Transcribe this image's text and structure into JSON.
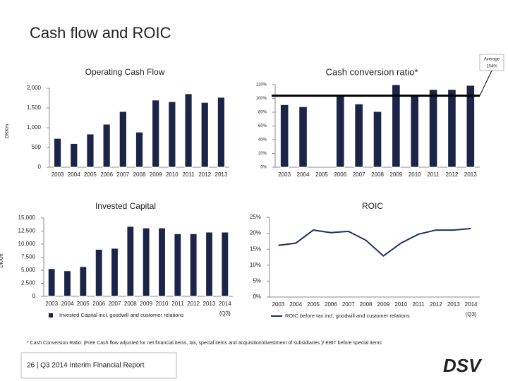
{
  "title": "Cash flow and ROIC",
  "footnote": "* Cash Conversion Ratio: (Free Cash flow adjusted for net financial items, tax, special items and acquisition/divestment of subsidiaries )/ EBIT before special items",
  "footer": "26 | Q3 2014 Interim Financial Report",
  "logo": "DSV",
  "chart_data": [
    {
      "type": "bar",
      "title": "Operating Cash Flow",
      "y_label": "DKKm",
      "categories": [
        "2003",
        "2004",
        "2005",
        "2006",
        "2007",
        "2008",
        "2009",
        "2010",
        "2011",
        "2012",
        "2013"
      ],
      "values": [
        730,
        600,
        840,
        1090,
        1410,
        890,
        1700,
        1660,
        1860,
        1640,
        1770
      ],
      "color": "#1c2448",
      "ylim": [
        0,
        2000
      ],
      "yticks": [
        0,
        500,
        {
          "value": 1000,
          "label": "1,000"
        },
        {
          "value": 1500,
          "label": "1,500"
        },
        {
          "value": 2000,
          "label": "2,000"
        }
      ]
    },
    {
      "type": "bar",
      "title": "Cash conversion ratio*",
      "categories": [
        "2003",
        "2004",
        "2005",
        "2006",
        "2007",
        "2008",
        "2009",
        "2010",
        "2011",
        "2012",
        "2013"
      ],
      "values": [
        91,
        88,
        null,
        104,
        92,
        81,
        120,
        104,
        113,
        113,
        119
      ],
      "color": "#1c2448",
      "reference_line": {
        "value": 104,
        "label": "104%"
      },
      "reference_note": "Average",
      "ylim": [
        0,
        120
      ],
      "yticks": [
        {
          "value": 0,
          "label": "0%"
        },
        {
          "value": 20,
          "label": "20%"
        },
        {
          "value": 40,
          "label": "40%"
        },
        {
          "value": 60,
          "label": "60%"
        },
        {
          "value": 80,
          "label": "80%"
        },
        {
          "value": 100,
          "label": "100%"
        },
        {
          "value": 120,
          "label": "120%"
        }
      ]
    },
    {
      "type": "bar",
      "title": "Invested Capital",
      "y_label": "DKKm",
      "categories": [
        "2003",
        "2004",
        "2005",
        "2006",
        "2007",
        "2008",
        "2009",
        "2010",
        "2011",
        "2012",
        "2013",
        "2014"
      ],
      "x_note": "(Q3)",
      "series": [
        {
          "name": "Invested Capital incl. goodwill and customer relations",
          "color": "#1c2448",
          "values": [
            5300,
            4900,
            5700,
            9000,
            9200,
            13400,
            13100,
            13100,
            12000,
            12000,
            12300,
            12300
          ]
        }
      ],
      "ylim": [
        0,
        15000
      ],
      "yticks": [
        0,
        {
          "value": 2500,
          "label": "2,500"
        },
        {
          "value": 5000,
          "label": "5,000"
        },
        {
          "value": 7500,
          "label": "7,500"
        },
        {
          "value": 10000,
          "label": "10,000"
        },
        {
          "value": 12500,
          "label": "12,500"
        },
        {
          "value": 15000,
          "label": "15,000"
        }
      ]
    },
    {
      "type": "line",
      "title": "ROIC",
      "categories": [
        "2003",
        "2004",
        "2005",
        "2006",
        "2007",
        "2008",
        "2009",
        "2010",
        "2011",
        "2012",
        "2013",
        "2014"
      ],
      "x_note": "(Q3)",
      "series": [
        {
          "name": "ROIC before tax incl. goodwill and customer relations",
          "color": "#1f3060",
          "values": [
            16.2,
            16.9,
            21,
            20.2,
            20.6,
            17.8,
            12.9,
            16.9,
            19.7,
            21,
            21,
            21.5
          ]
        }
      ],
      "ylim": [
        0,
        25
      ],
      "yticks": [
        {
          "value": 0,
          "label": "0%"
        },
        {
          "value": 5,
          "label": "5%"
        },
        {
          "value": 10,
          "label": "10%"
        },
        {
          "value": 15,
          "label": "15%"
        },
        {
          "value": 20,
          "label": "20%"
        },
        {
          "value": 25,
          "label": "25%"
        }
      ]
    }
  ]
}
